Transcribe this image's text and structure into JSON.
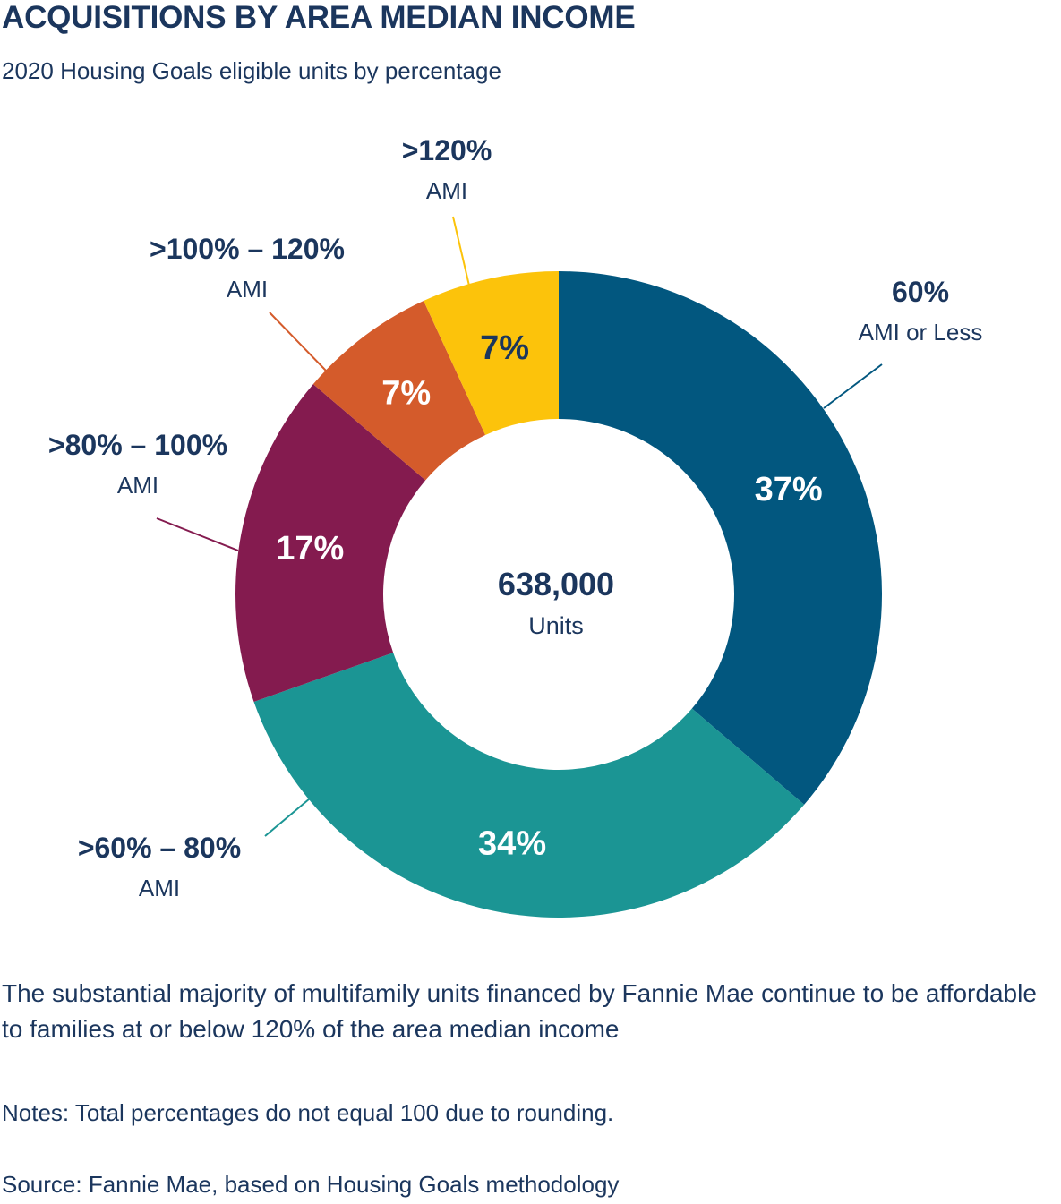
{
  "header": {
    "title": "ACQUISITIONS BY AREA MEDIAN INCOME",
    "subtitle": "2020 Housing Goals eligible units by percentage"
  },
  "chart_data": {
    "type": "pie",
    "donut": true,
    "center_value": "638,000",
    "center_label": "Units",
    "slices": [
      {
        "label": "60%",
        "sublabel": "AMI or Less",
        "value": 37,
        "display": "37%",
        "color": "#02577f"
      },
      {
        "label": ">60% – 80%",
        "sublabel": "AMI",
        "value": 34,
        "display": "34%",
        "color": "#1b9594"
      },
      {
        "label": ">80% – 100%",
        "sublabel": "AMI",
        "value": 17,
        "display": "17%",
        "color": "#841b4f"
      },
      {
        "label": ">100% – 120%",
        "sublabel": "AMI",
        "value": 7,
        "display": "7%",
        "color": "#d45b2b"
      },
      {
        "label": ">120%",
        "sublabel": "AMI",
        "value": 7,
        "display": "7%",
        "color": "#fcc30b"
      }
    ]
  },
  "caption": "The substantial majority of multifamily units financed by Fannie Mae continue to be affordable to families at or below 120% of the area median income",
  "notes": "Notes:  Total percentages do not equal 100 due to rounding.",
  "source": "Source: Fannie Mae, based on Housing Goals methodology"
}
